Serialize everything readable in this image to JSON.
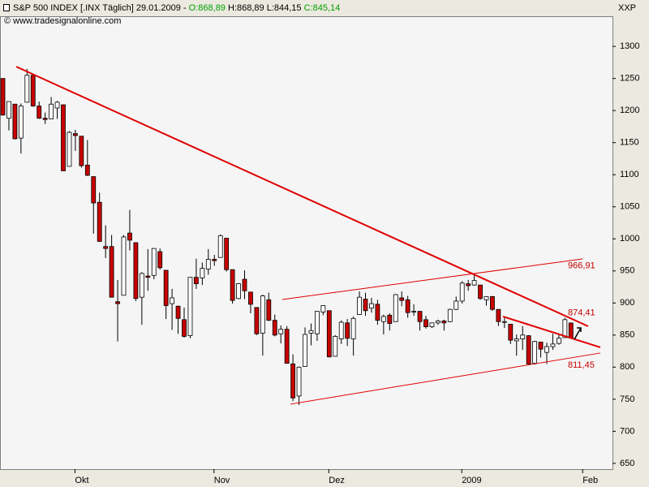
{
  "header": {
    "parts": [
      "S&P 500 INDEX [.INX  Täglich] 29.01.2009 - ",
      "O:868,89",
      " H:868,89 L:844,15 ",
      "C:845,14"
    ],
    "source": "© www.tradesignalonline.com",
    "corner": "XXP"
  },
  "chart_data": {
    "type": "candlestick",
    "categories": [
      null,
      null,
      null,
      null,
      null,
      null,
      null,
      null,
      null,
      null,
      null,
      null,
      "Okt",
      null,
      null,
      null,
      null,
      null,
      null,
      null,
      null,
      null,
      null,
      null,
      null,
      null,
      null,
      null,
      null,
      null,
      null,
      null,
      null,
      null,
      null,
      "Nov",
      null,
      null,
      null,
      null,
      null,
      null,
      null,
      null,
      null,
      null,
      null,
      null,
      null,
      null,
      null,
      null,
      null,
      null,
      "Dez",
      null,
      null,
      null,
      null,
      null,
      null,
      null,
      null,
      null,
      null,
      null,
      null,
      null,
      null,
      null,
      null,
      null,
      null,
      null,
      null,
      null,
      "2009",
      null,
      null,
      null,
      null,
      null,
      null,
      null,
      null,
      null,
      null,
      null,
      null,
      null,
      null,
      null,
      null,
      null,
      null,
      null,
      "Feb"
    ],
    "open": [
      1250,
      1188,
      1210,
      1157,
      1213,
      1255,
      1207,
      1188,
      1187,
      1204,
      1209,
      1113,
      1164,
      1160,
      1115,
      1097,
      1057,
      988,
      988,
      902,
      912,
      1009,
      994,
      909,
      942,
      943,
      980,
      951,
      899,
      895,
      874,
      849,
      940,
      939,
      953,
      968,
      971,
      1001,
      952,
      907,
      937,
      917,
      893,
      853,
      905,
      873,
      852,
      859,
      805,
      755,
      801,
      853,
      852,
      886,
      888,
      817,
      844,
      869,
      844,
      882,
      906,
      892,
      898,
      871,
      881,
      871,
      908,
      905,
      886,
      887,
      874,
      863,
      869,
      872,
      871,
      890,
      903,
      930,
      928,
      928,
      905,
      910,
      890,
      870,
      867,
      841,
      844,
      849,
      806,
      839,
      823,
      832,
      837,
      846,
      868.89,
      null,
      null
    ],
    "high": [
      1250,
      1214,
      1210,
      1211,
      1265,
      1255,
      1214,
      1197,
      1221,
      1215,
      1209,
      1168,
      1170,
      1160,
      1154,
      1097,
      1072,
      1021,
      1006,
      936,
      1006,
      1045,
      994,
      948,
      984,
      985,
      985,
      951,
      922,
      896,
      893,
      940,
      969,
      963,
      984,
      975,
      1007,
      1001,
      952,
      931,
      951,
      917,
      893,
      913,
      916,
      882,
      865,
      864,
      820,
      801,
      862,
      868,
      887,
      896,
      888,
      850,
      873,
      875,
      879,
      918,
      916,
      908,
      905,
      882,
      884,
      914,
      918,
      911,
      898,
      887,
      880,
      869,
      874,
      874,
      891,
      910,
      934,
      936,
      943,
      928,
      911,
      911,
      890,
      877,
      867,
      851,
      864,
      850,
      841,
      839,
      838,
      852,
      851,
      877,
      868.89,
      null,
      null
    ],
    "low": [
      1192,
      1169,
      1155,
      1133,
      1213,
      1206,
      1187,
      1179,
      1187,
      1187,
      1106,
      1113,
      1137,
      1111,
      1098,
      1008,
      996,
      970,
      909,
      840,
      912,
      982,
      903,
      866,
      919,
      937,
      952,
      875,
      858,
      852,
      846,
      845,
      922,
      928,
      944,
      958,
      971,
      949,
      899,
      906,
      906,
      884,
      850,
      818,
      872,
      848,
      837,
      806,
      747,
      741,
      801,
      834,
      841,
      881,
      815,
      817,
      836,
      833,
      818,
      882,
      880,
      885,
      866,
      851,
      857,
      871,
      895,
      877,
      880,
      857,
      860,
      861,
      866,
      857,
      870,
      889,
      899,
      919,
      927,
      905,
      896,
      888,
      864,
      861,
      836,
      818,
      827,
      804,
      804,
      815,
      805,
      827,
      835,
      846,
      844.15,
      null,
      null
    ],
    "close": [
      1193,
      1214,
      1156,
      1207,
      1255,
      1207,
      1188,
      1186,
      1210,
      1213,
      1106,
      1166,
      1161,
      1114,
      1099,
      1056,
      996,
      985,
      909,
      899,
      1003,
      998,
      907,
      946,
      940,
      985,
      955,
      896,
      908,
      876,
      848,
      940,
      930,
      954,
      968,
      966,
      1005,
      952,
      904,
      930,
      919,
      898,
      852,
      911,
      873,
      850,
      859,
      806,
      752,
      800,
      851,
      857,
      887,
      896,
      816,
      848,
      870,
      845,
      876,
      909,
      888,
      899,
      873,
      879,
      868,
      913,
      904,
      885,
      887,
      871,
      863,
      869,
      872,
      869,
      890,
      903,
      931,
      927,
      935,
      907,
      910,
      890,
      871,
      871,
      842,
      844,
      850,
      805,
      840,
      828,
      832,
      836,
      845,
      874,
      845.14,
      null,
      null
    ],
    "up_color": "#ffffff",
    "down_color": "#c80000",
    "ylim": [
      641,
      1347
    ],
    "yticks": [
      650,
      700,
      750,
      800,
      850,
      900,
      950,
      1000,
      1050,
      1100,
      1150,
      1200,
      1250,
      1300
    ],
    "trendlines": [
      {
        "values": [
          1268.4,
          863.7
        ],
        "color": "#e00000",
        "width": 2
      },
      {
        "values": [
          878.9,
          830.9
        ],
        "color": "#e00000",
        "width": 2
      },
      {
        "values": [
          905.5,
          968.7
        ],
        "color": "#e00000",
        "width": 1
      },
      {
        "values": [
          742.3,
          822
        ],
        "color": "#e00000",
        "width": 1
      }
    ],
    "annotations": [
      {
        "value": 966.91,
        "label": "966,91"
      },
      {
        "value": 874.41,
        "label": "874,41"
      },
      {
        "value": 811.45,
        "label": "811,45"
      }
    ],
    "grid": false
  }
}
